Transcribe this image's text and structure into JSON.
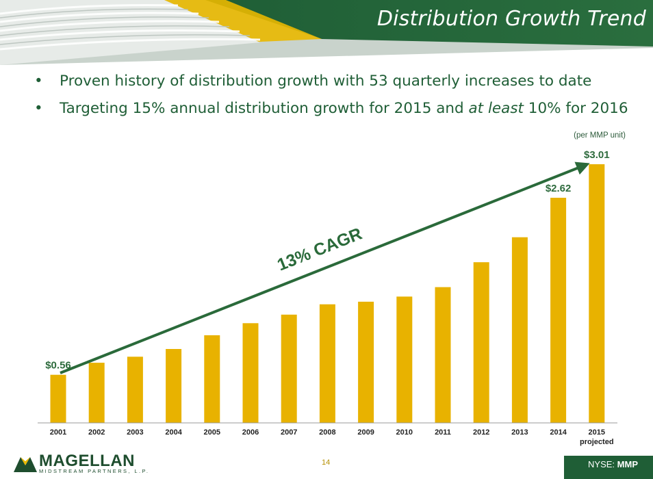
{
  "header": {
    "title": "Distribution Growth Trend"
  },
  "bullets": [
    {
      "symbol": "•",
      "text_before": "Proven history of distribution growth with 53 quarterly increases to date",
      "emph": "",
      "text_after": ""
    },
    {
      "symbol": "•",
      "text_before": "Targeting 15% annual distribution growth for 2015 and ",
      "emph": "at least",
      "text_after": " 10% for 2016"
    }
  ],
  "unit_note": "(per MMP unit)",
  "footer": {
    "page_number": "14",
    "ticker_prefix": "NYSE: ",
    "ticker": "MMP",
    "logo_name": "MAGELLAN",
    "logo_tagline": "MIDSTREAM PARTNERS, L.P."
  },
  "colors": {
    "bar": "#e8b200",
    "brand_green": "#1f5e36",
    "label_green": "#2e6b3d"
  },
  "chart_data": {
    "type": "bar",
    "categories": [
      "2001",
      "2002",
      "2003",
      "2004",
      "2005",
      "2006",
      "2007",
      "2008",
      "2009",
      "2010",
      "2011",
      "2012",
      "2013",
      "2014",
      "2015"
    ],
    "category_sublabels": {
      "14": "projected"
    },
    "values": [
      0.56,
      0.7,
      0.77,
      0.86,
      1.02,
      1.16,
      1.26,
      1.38,
      1.41,
      1.47,
      1.58,
      1.87,
      2.16,
      2.62,
      3.01
    ],
    "data_labels": [
      {
        "index": 0,
        "text": "$0.56"
      },
      {
        "index": 13,
        "text": "$2.62"
      },
      {
        "index": 14,
        "text": "$3.01"
      }
    ],
    "annotation": "13% CAGR",
    "ylim": [
      0,
      3.01
    ],
    "grid": false,
    "legend": "none"
  }
}
